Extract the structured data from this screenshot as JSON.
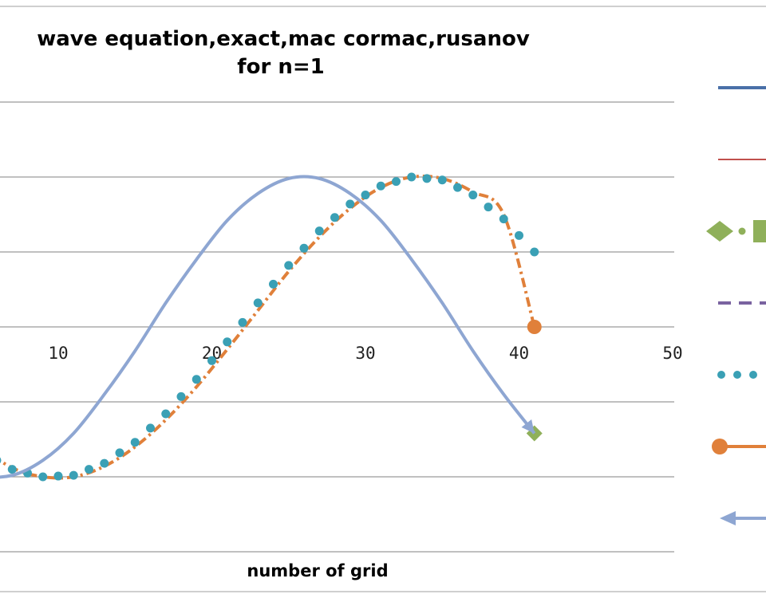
{
  "chart_data": {
    "type": "line",
    "title_line1": "wave equation,exact,mac cormac,rusanov",
    "title_line2": "for n=1",
    "xlabel": "number of grid",
    "ylabel": "",
    "xlim": [
      2,
      50
    ],
    "ylim": [
      -1.5,
      1.5
    ],
    "xticks": [
      10,
      20,
      30,
      40,
      50
    ],
    "grid": true,
    "legend_placement": "right",
    "series": [
      {
        "id": "s1",
        "color": "#4a70a8",
        "style": "solid",
        "x": [
          1,
          3,
          5,
          7,
          9,
          11,
          13,
          15,
          17,
          19,
          21,
          23,
          25,
          27,
          29,
          31,
          33,
          35,
          37,
          39,
          41
        ],
        "y": [
          -0.71,
          -0.89,
          -0.99,
          -0.99,
          -0.89,
          -0.71,
          -0.45,
          -0.16,
          0.16,
          0.45,
          0.71,
          0.89,
          0.99,
          0.99,
          0.89,
          0.71,
          0.45,
          0.16,
          -0.16,
          -0.45,
          -0.71
        ]
      },
      {
        "id": "s2",
        "color": "#c0504d",
        "style": "solid-thin",
        "x": [
          1,
          3,
          5,
          7,
          9,
          11,
          13,
          15,
          17,
          19,
          21,
          23,
          25,
          27,
          29,
          31,
          33,
          35,
          37,
          39,
          41
        ],
        "y": [
          -0.71,
          -0.89,
          -0.99,
          -0.99,
          -0.89,
          -0.71,
          -0.45,
          -0.16,
          0.16,
          0.45,
          0.71,
          0.89,
          0.99,
          0.99,
          0.89,
          0.71,
          0.45,
          0.16,
          -0.16,
          -0.45,
          -0.71
        ]
      },
      {
        "id": "s3",
        "color": "#8fb05a",
        "style": "dash-dot-diamond",
        "x": [
          1,
          3,
          5,
          7,
          9,
          11,
          13,
          15,
          17,
          19,
          21,
          23,
          25,
          27,
          29,
          31,
          33,
          35,
          37,
          39,
          41
        ],
        "y": [
          -0.71,
          -0.89,
          -0.99,
          -0.99,
          -0.89,
          -0.71,
          -0.45,
          -0.16,
          0.16,
          0.45,
          0.71,
          0.89,
          0.99,
          0.99,
          0.89,
          0.71,
          0.45,
          0.16,
          -0.16,
          -0.45,
          -0.71
        ]
      },
      {
        "id": "s4",
        "color": "#7a63a0",
        "style": "dashed",
        "x": [
          1,
          3,
          5,
          7,
          9,
          11,
          13,
          15,
          17,
          19,
          21,
          23,
          25,
          27,
          29,
          31,
          33,
          35,
          37,
          39,
          41
        ],
        "y": [
          -0.71,
          -0.89,
          -0.99,
          -0.99,
          -0.89,
          -0.71,
          -0.45,
          -0.16,
          0.16,
          0.45,
          0.71,
          0.89,
          0.99,
          0.99,
          0.89,
          0.71,
          0.45,
          0.16,
          -0.16,
          -0.45,
          -0.71
        ]
      },
      {
        "id": "s5",
        "color": "#3aa0b5",
        "style": "dotted",
        "x": [
          1,
          3,
          5,
          7,
          9,
          11,
          13,
          15,
          17,
          19,
          21,
          23,
          25,
          27,
          29,
          31,
          33,
          35,
          37,
          39,
          41
        ],
        "y": [
          -0.45,
          -0.66,
          -0.83,
          -0.95,
          -1.0,
          -0.99,
          -0.91,
          -0.77,
          -0.58,
          -0.35,
          -0.1,
          0.16,
          0.41,
          0.64,
          0.82,
          0.94,
          1.0,
          0.98,
          0.88,
          0.72,
          0.5
        ]
      },
      {
        "id": "s6",
        "color": "#e0803a",
        "style": "dash-dot-circle",
        "x": [
          1,
          3,
          5,
          7,
          9,
          11,
          13,
          15,
          17,
          19,
          21,
          23,
          25,
          27,
          29,
          31,
          33,
          35,
          37,
          39,
          41
        ],
        "y": [
          -0.4,
          -0.61,
          -0.8,
          -0.94,
          -1.0,
          -1.0,
          -0.93,
          -0.8,
          -0.62,
          -0.4,
          -0.15,
          0.11,
          0.37,
          0.6,
          0.79,
          0.93,
          1.0,
          0.99,
          0.9,
          0.75,
          0.0
        ]
      },
      {
        "id": "s7",
        "color": "#8ea6d2",
        "style": "solid-thick-arrow",
        "x": [
          1,
          3,
          5,
          7,
          9,
          11,
          13,
          15,
          17,
          19,
          21,
          23,
          25,
          27,
          29,
          31,
          33,
          35,
          37,
          39,
          41
        ],
        "y": [
          -0.71,
          -0.89,
          -0.99,
          -0.99,
          -0.89,
          -0.71,
          -0.45,
          -0.16,
          0.16,
          0.45,
          0.71,
          0.89,
          0.99,
          0.99,
          0.89,
          0.71,
          0.45,
          0.16,
          -0.16,
          -0.45,
          -0.71
        ]
      }
    ]
  }
}
